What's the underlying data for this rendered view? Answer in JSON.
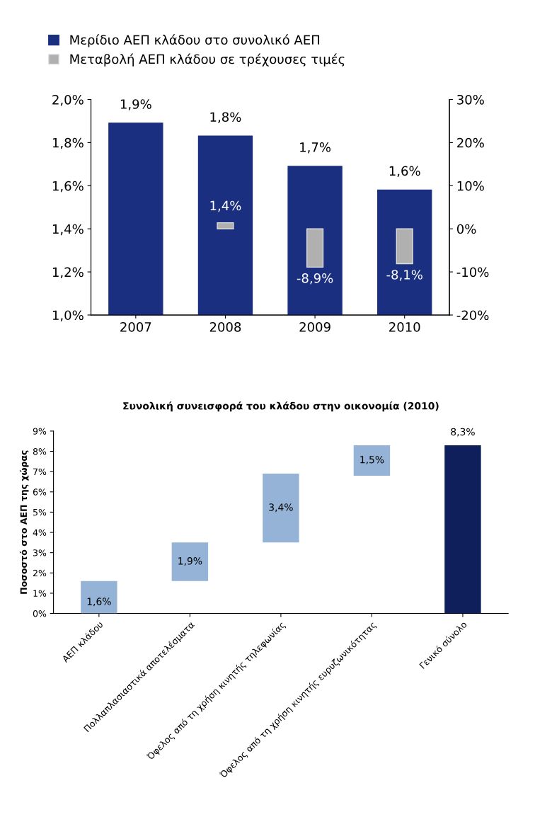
{
  "chart_data": [
    {
      "type": "bar",
      "categories": [
        "2007",
        "2008",
        "2009",
        "2010"
      ],
      "legend": "top",
      "ylim": [
        1.0,
        2.0
      ],
      "yticks": [
        {
          "value": 1.0,
          "label": "1,0%"
        },
        {
          "value": 1.2,
          "label": "1,2%"
        },
        {
          "value": 1.4,
          "label": "1,4%"
        },
        {
          "value": 1.6,
          "label": "1,6%"
        },
        {
          "value": 1.8,
          "label": "1,8%"
        },
        {
          "value": 2.0,
          "label": "2,0%"
        }
      ],
      "y2lim": [
        -20,
        30
      ],
      "y2ticks": [
        {
          "value": -20,
          "label": "-20%"
        },
        {
          "value": -10,
          "label": "-10%"
        },
        {
          "value": 0,
          "label": "0%"
        },
        {
          "value": 10,
          "label": "10%"
        },
        {
          "value": 20,
          "label": "20%"
        },
        {
          "value": 30,
          "label": "30%"
        }
      ],
      "series": [
        {
          "name": "Μερίδιο ΑΕΠ κλάδου στο συνολικό ΑΕΠ",
          "color": "#1a2f80",
          "values": [
            1.89,
            1.83,
            1.69,
            1.58
          ],
          "value_labels": [
            "1,9%",
            "1,8%",
            "1,7%",
            "1,6%"
          ]
        },
        {
          "name": "Μεταβολή ΑΕΠ κλάδου σε τρέχουσες τιμές",
          "color": "#b0b0b0",
          "axis": "y2",
          "values": [
            null,
            1.4,
            -8.9,
            -8.1
          ],
          "value_labels": [
            null,
            "1,4%",
            "-8,9%",
            "-8,1%"
          ]
        }
      ]
    },
    {
      "type": "bar",
      "title": "Συνολική συνεισφορά του κλάδου στην οικονομία (2010)",
      "ylabel": "Ποσοστό στο ΑΕΠ της χώρας",
      "categories": [
        "ΑΕΠ κλάδου",
        "Πολλαπλασιαστικά αποτελέσματα",
        "Όφελος από τη χρήση κινητής τηλεφωνίας",
        "Όφελος από τη χρήση κινητής ευρυζωνικότητας",
        "Γενικό σύνολο"
      ],
      "values": [
        1.6,
        1.9,
        3.4,
        1.5,
        8.3
      ],
      "base": [
        0,
        1.6,
        3.5,
        6.8,
        0
      ],
      "colors": [
        "#95b3d7",
        "#95b3d7",
        "#95b3d7",
        "#95b3d7",
        "#0f1f5c"
      ],
      "value_labels": [
        "1,6%",
        "1,9%",
        "3,4%",
        "1,5%",
        "8,3%"
      ],
      "ylim": [
        0,
        9
      ],
      "yticks": [
        {
          "value": 0,
          "label": "0%"
        },
        {
          "value": 1,
          "label": "1%"
        },
        {
          "value": 2,
          "label": "2%"
        },
        {
          "value": 3,
          "label": "3%"
        },
        {
          "value": 4,
          "label": "4%"
        },
        {
          "value": 5,
          "label": "5%"
        },
        {
          "value": 6,
          "label": "6%"
        },
        {
          "value": 7,
          "label": "7%"
        },
        {
          "value": 8,
          "label": "8%"
        },
        {
          "value": 9,
          "label": "9%"
        }
      ]
    }
  ]
}
